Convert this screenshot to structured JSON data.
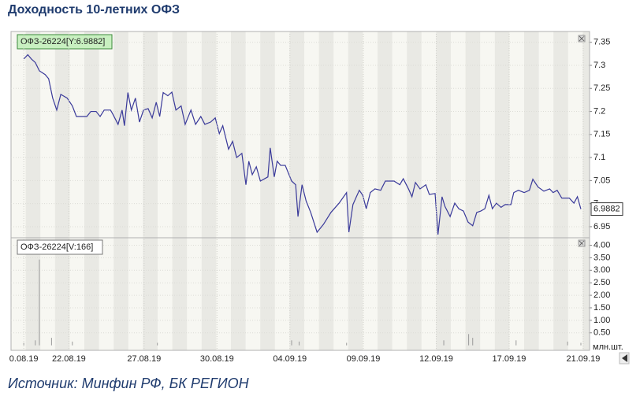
{
  "title": "Доходность 10-летних ОФЗ",
  "source": "Источник: Минфин РФ, БК РЕГИОН",
  "chart_data": [
    {
      "type": "line",
      "x": [
        2.2,
        2.9,
        3.5,
        4.2,
        4.9,
        5.9,
        6.5,
        7.2,
        7.9,
        8.6,
        9.7,
        10.6,
        11.3,
        13.1,
        13.8,
        14.7,
        15.4,
        16.1,
        17.2,
        17.6,
        18.5,
        19.2,
        19.6,
        20.2,
        20.8,
        21.5,
        22.2,
        22.9,
        23.7,
        24.4,
        25.1,
        25.7,
        26.3,
        27.1,
        27.8,
        28.5,
        29.4,
        30.1,
        31.1,
        31.9,
        32.8,
        33.5,
        34.5,
        35.3,
        36.0,
        36.6,
        37.6,
        38.3,
        39.0,
        39.9,
        40.6,
        41.1,
        41.7,
        42.4,
        43.1,
        44.4,
        44.8,
        45.5,
        46.0,
        46.6,
        47.4,
        48.5,
        49.2,
        49.6,
        50.3,
        51.0,
        51.8,
        52.9,
        54.0,
        55.3,
        56.7,
        58.0,
        58.4,
        59.1,
        59.7,
        60.2,
        60.8,
        61.4,
        62.1,
        62.9,
        63.9,
        64.7,
        66.2,
        67.2,
        67.8,
        68.7,
        69.3,
        69.9,
        70.7,
        71.7,
        72.3,
        73.3,
        73.8,
        74.5,
        75.0,
        75.9,
        76.7,
        77.4,
        78.2,
        79.0,
        79.8,
        80.5,
        81.2,
        81.9,
        82.6,
        83.2,
        83.9,
        84.7,
        85.4,
        86.4,
        86.9,
        87.7,
        88.7,
        89.6,
        90.2,
        91.1,
        92.1,
        93.1,
        93.7,
        94.4,
        95.2,
        96.5,
        97.3,
        97.9,
        98.5
      ],
      "series": [
        {
          "name": "ОФЗ-26224[Y:6.9882]",
          "color": "#3a3a9a",
          "values": [
            7.314,
            7.323,
            7.314,
            7.306,
            7.288,
            7.28,
            7.271,
            7.229,
            7.203,
            7.237,
            7.229,
            7.212,
            7.189,
            7.189,
            7.2,
            7.2,
            7.189,
            7.203,
            7.203,
            7.194,
            7.172,
            7.203,
            7.169,
            7.241,
            7.203,
            7.229,
            7.177,
            7.203,
            7.206,
            7.186,
            7.22,
            7.189,
            7.241,
            7.234,
            7.242,
            7.203,
            7.212,
            7.172,
            7.203,
            7.172,
            7.189,
            7.172,
            7.177,
            7.186,
            7.152,
            7.169,
            7.118,
            7.135,
            7.1,
            7.109,
            7.041,
            7.092,
            7.063,
            7.08,
            7.049,
            7.058,
            7.121,
            7.058,
            7.092,
            7.083,
            7.083,
            7.049,
            7.041,
            6.972,
            7.041,
            7.006,
            6.981,
            6.938,
            6.955,
            6.981,
            7.001,
            7.024,
            6.938,
            6.998,
            7.015,
            7.029,
            7.018,
            6.989,
            7.024,
            7.032,
            7.029,
            7.049,
            7.049,
            7.041,
            7.054,
            7.032,
            7.015,
            7.046,
            7.032,
            7.041,
            7.02,
            7.022,
            6.933,
            7.015,
            6.994,
            6.972,
            7.001,
            6.989,
            6.984,
            6.96,
            6.952,
            6.981,
            6.984,
            6.989,
            7.018,
            6.989,
            7.001,
            6.992,
            6.998,
            6.998,
            7.024,
            7.029,
            7.024,
            7.029,
            7.053,
            7.036,
            7.027,
            7.032,
            7.024,
            7.029,
            7.012,
            7.012,
            7.001,
            7.015,
            6.9882
          ]
        }
      ],
      "xlim": [
        0,
        100
      ],
      "ylim": [
        6.926,
        7.37
      ],
      "yticks": [
        6.95,
        7,
        7.05,
        7.1,
        7.15,
        7.2,
        7.25,
        7.3,
        7.35
      ]
    },
    {
      "type": "bar",
      "x": [
        2.2,
        4.2,
        4.9,
        7.0,
        10.6,
        25.3,
        48.5,
        49.8,
        58.0,
        74.8,
        79.1,
        79.8,
        87.3,
        96.2,
        98.5
      ],
      "series": [
        {
          "name": "ОФЗ-26224[V:166]",
          "color": "#999999",
          "values": [
            0.1,
            0.2,
            3.43,
            0.3,
            0.15,
            0.1,
            0.2,
            0.15,
            0.1,
            0.2,
            0.45,
            0.3,
            0.2,
            0.15,
            0.1
          ]
        }
      ],
      "xlim": [
        0,
        100
      ],
      "ylim": [
        -0.2,
        4.3
      ],
      "yticks": [
        {
          "value": 0.5,
          "label": "0.50"
        },
        {
          "value": 1,
          "label": "1.00"
        },
        {
          "value": 1.5,
          "label": "1.50"
        },
        {
          "value": 2,
          "label": "2.00"
        },
        {
          "value": 2.5,
          "label": "2.50"
        },
        {
          "value": 3,
          "label": "3.00"
        },
        {
          "value": 3.5,
          "label": "3.50"
        },
        {
          "value": 4,
          "label": "4.00"
        }
      ],
      "y_unit": "млн.шт.",
      "xticks": [
        {
          "value": 2.2,
          "label": "0.08.19"
        },
        {
          "value": 10,
          "label": "22.08.19"
        },
        {
          "value": 23,
          "label": "27.08.19"
        },
        {
          "value": 35.6,
          "label": "30.08.19"
        },
        {
          "value": 48.2,
          "label": "04.09.19"
        },
        {
          "value": 60.9,
          "label": "09.09.19"
        },
        {
          "value": 73.5,
          "label": "12.09.19"
        },
        {
          "value": 86.1,
          "label": "17.09.19"
        },
        {
          "value": 98.9,
          "label": "21.09.19"
        }
      ]
    }
  ]
}
